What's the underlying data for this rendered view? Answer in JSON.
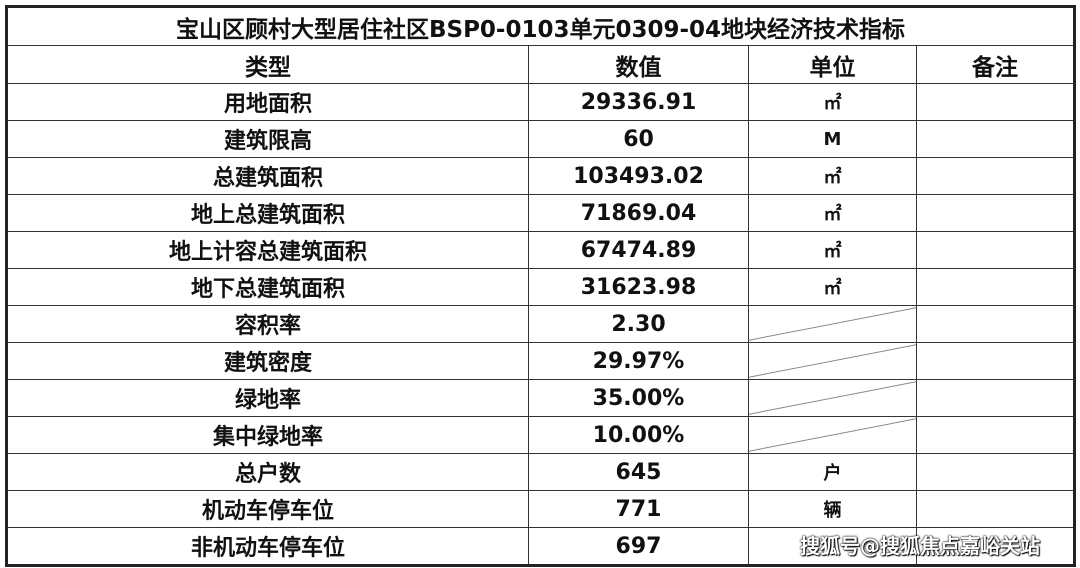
{
  "title": "宝山区顾村大型居住社区BSP0-0103单元0309-04地块经济技术指标",
  "headers": [
    "类型",
    "数值",
    "单位",
    "备注"
  ],
  "rows": [
    {
      "type": "用地面积",
      "value": "29336.91",
      "unit": "㎡",
      "note": ""
    },
    {
      "type": "建筑限高",
      "value": "60",
      "unit": "M",
      "note": ""
    },
    {
      "type": "总建筑面积",
      "value": "103493.02",
      "unit": "㎡",
      "note": ""
    },
    {
      "type": "地上总建筑面积",
      "value": "71869.04",
      "unit": "㎡",
      "note": ""
    },
    {
      "type": "地上计容总建筑面积",
      "value": "67474.89",
      "unit": "㎡",
      "note": ""
    },
    {
      "type": "地下总建筑面积",
      "value": "31623.98",
      "unit": "㎡",
      "note": ""
    },
    {
      "type": "容积率",
      "value": "2.30",
      "unit": "",
      "note": ""
    },
    {
      "type": "建筑密度",
      "value": "29.97%",
      "unit": "",
      "note": ""
    },
    {
      "type": "绿地率",
      "value": "35.00%",
      "unit": "",
      "note": ""
    },
    {
      "type": "集中绿地率",
      "value": "10.00%",
      "unit": "",
      "note": ""
    },
    {
      "type": "总户数",
      "value": "645",
      "unit": "户",
      "note": ""
    },
    {
      "type": "机动车停车位",
      "value": "771",
      "unit": "辆",
      "note": ""
    },
    {
      "type": "非机动车停车位",
      "value": "697",
      "unit": "",
      "note": ""
    }
  ],
  "watermark": "搜狐号@搜狐焦点嘉峪关站"
}
